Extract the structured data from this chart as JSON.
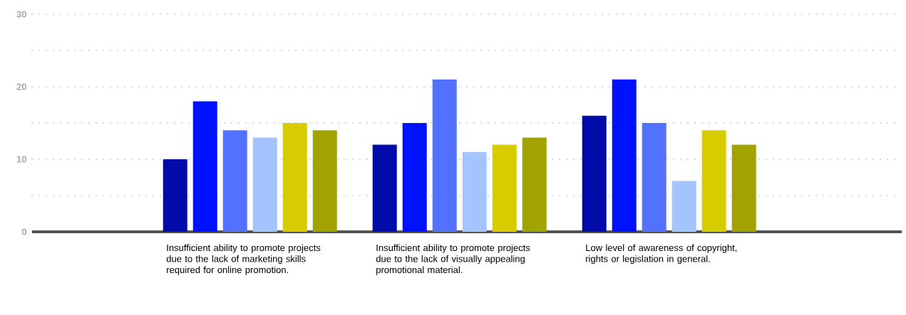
{
  "chart_data": {
    "type": "bar",
    "categories": [
      "Insufficient ability to promote projects due to the lack of marketing skills required for online promotion.",
      "Insufficient ability to promote projects due to the lack of visually appealing promotional material.",
      "Low level of awareness of copyright, rights or legislation in general."
    ],
    "series": [
      {
        "color": "#000baa",
        "values": [
          10,
          12,
          16
        ]
      },
      {
        "color": "#0011ff",
        "values": [
          18,
          15,
          21
        ]
      },
      {
        "color": "#5271ff",
        "values": [
          14,
          21,
          15
        ]
      },
      {
        "color": "#a3c4ff",
        "values": [
          13,
          11,
          7
        ]
      },
      {
        "color": "#d6cc00",
        "values": [
          15,
          12,
          14
        ]
      },
      {
        "color": "#a0a300",
        "values": [
          14,
          13,
          12
        ]
      }
    ],
    "ylim": [
      0,
      30
    ],
    "yticks": [
      0,
      {
        "value": 5,
        "label": null
      },
      10,
      {
        "value": 15,
        "label": null
      },
      20,
      {
        "value": 25,
        "label": null
      },
      30
    ],
    "grid": "y"
  }
}
